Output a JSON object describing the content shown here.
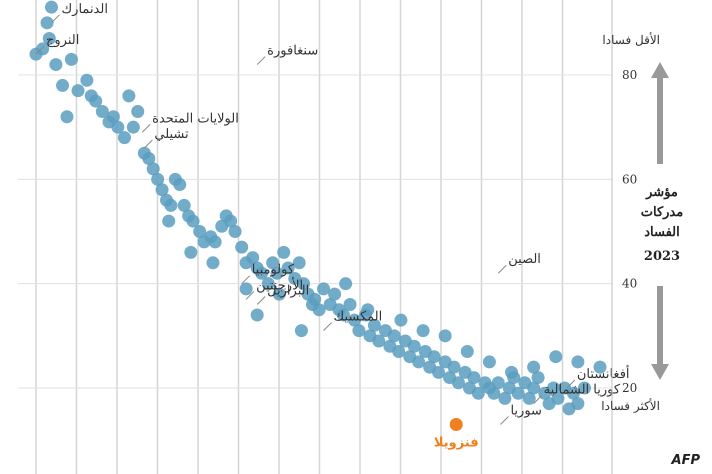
{
  "chart_data": {
    "type": "scatter",
    "yticks": [
      20,
      40,
      60,
      80
    ],
    "ylim": [
      11,
      94
    ],
    "index_title": [
      "مؤشر",
      "مدركات",
      "الفساد",
      "2023"
    ],
    "top_label": "الأقل فسادا",
    "bottom_label": "الأكثر فسادا",
    "highlight_color": "#f07f1e",
    "point_color": "#5b9dc0",
    "source": "AFP",
    "points": [
      [
        0,
        84
      ],
      [
        3,
        85
      ],
      [
        5,
        90
      ],
      [
        6,
        87
      ],
      [
        7,
        93
      ],
      [
        9,
        82
      ],
      [
        12,
        78
      ],
      [
        14,
        72
      ],
      [
        16,
        83
      ],
      [
        19,
        77
      ],
      [
        23,
        79
      ],
      [
        25,
        76
      ],
      [
        27,
        75
      ],
      [
        30,
        73
      ],
      [
        33,
        71
      ],
      [
        35,
        72
      ],
      [
        37,
        70
      ],
      [
        40,
        68
      ],
      [
        42,
        76
      ],
      [
        44,
        70
      ],
      [
        46,
        73
      ],
      [
        49,
        65
      ],
      [
        51,
        64
      ],
      [
        53,
        62
      ],
      [
        55,
        60
      ],
      [
        57,
        58
      ],
      [
        59,
        56
      ],
      [
        61,
        55
      ],
      [
        63,
        60
      ],
      [
        65,
        59
      ],
      [
        67,
        55
      ],
      [
        69,
        53
      ],
      [
        71,
        52
      ],
      [
        74,
        50
      ],
      [
        76,
        48
      ],
      [
        79,
        49
      ],
      [
        81,
        48
      ],
      [
        84,
        51
      ],
      [
        86,
        53
      ],
      [
        88,
        52
      ],
      [
        90,
        50
      ],
      [
        93,
        47
      ],
      [
        95,
        44
      ],
      [
        98,
        45
      ],
      [
        100,
        43
      ],
      [
        102,
        42
      ],
      [
        105,
        40
      ],
      [
        107,
        44
      ],
      [
        109,
        42
      ],
      [
        112,
        46
      ],
      [
        114,
        43
      ],
      [
        117,
        41
      ],
      [
        119,
        44
      ],
      [
        121,
        40
      ],
      [
        123,
        38
      ],
      [
        126,
        37
      ],
      [
        128,
        35
      ],
      [
        130,
        39
      ],
      [
        133,
        36
      ],
      [
        135,
        38
      ],
      [
        137,
        35
      ],
      [
        139,
        34
      ],
      [
        142,
        36
      ],
      [
        144,
        33
      ],
      [
        146,
        31
      ],
      [
        149,
        34
      ],
      [
        151,
        30
      ],
      [
        153,
        32
      ],
      [
        155,
        29
      ],
      [
        158,
        31
      ],
      [
        160,
        28
      ],
      [
        162,
        30
      ],
      [
        164,
        27
      ],
      [
        167,
        29
      ],
      [
        169,
        26
      ],
      [
        171,
        28
      ],
      [
        173,
        25
      ],
      [
        176,
        27
      ],
      [
        178,
        24
      ],
      [
        180,
        26
      ],
      [
        182,
        23
      ],
      [
        185,
        25
      ],
      [
        187,
        22
      ],
      [
        189,
        24
      ],
      [
        191,
        21
      ],
      [
        194,
        23
      ],
      [
        196,
        20
      ],
      [
        198,
        22
      ],
      [
        200,
        19
      ],
      [
        203,
        21
      ],
      [
        205,
        20
      ],
      [
        207,
        19
      ],
      [
        209,
        21
      ],
      [
        212,
        18
      ],
      [
        214,
        20
      ],
      [
        216,
        22
      ],
      [
        218,
        19
      ],
      [
        221,
        21
      ],
      [
        223,
        18
      ],
      [
        225,
        20
      ],
      [
        227,
        22
      ],
      [
        230,
        19
      ],
      [
        232,
        17
      ],
      [
        234,
        20
      ],
      [
        236,
        18
      ],
      [
        239,
        20
      ],
      [
        241,
        16
      ],
      [
        243,
        19
      ],
      [
        245,
        17
      ],
      [
        248,
        20
      ],
      [
        60,
        52
      ],
      [
        70,
        46
      ],
      [
        80,
        44
      ],
      [
        95,
        39
      ],
      [
        110,
        38
      ],
      [
        125,
        36
      ],
      [
        140,
        40
      ],
      [
        150,
        35
      ],
      [
        165,
        33
      ],
      [
        175,
        31
      ],
      [
        185,
        30
      ],
      [
        195,
        27
      ],
      [
        205,
        25
      ],
      [
        215,
        23
      ],
      [
        225,
        24
      ],
      [
        235,
        26
      ],
      [
        245,
        25
      ],
      [
        255,
        24
      ],
      [
        100,
        34
      ],
      [
        120,
        31
      ]
    ],
    "labeled_points": [
      {
        "x": 0,
        "y": 84,
        "label": "النروج"
      },
      {
        "x": 7,
        "y": 90,
        "label": "الدنمارك"
      },
      {
        "x": 48,
        "y": 69,
        "label": "الولايات المتحدة"
      },
      {
        "x": 49,
        "y": 66,
        "label": "تشيلي"
      },
      {
        "x": 100,
        "y": 82,
        "label": "سنغافورة"
      },
      {
        "x": 93,
        "y": 40,
        "label": "كولومبيا"
      },
      {
        "x": 95,
        "y": 37,
        "label": "الأرجنتين"
      },
      {
        "x": 100,
        "y": 36,
        "label": "البرازيل"
      },
      {
        "x": 130,
        "y": 31,
        "label": "المكسيك"
      },
      {
        "x": 209,
        "y": 42,
        "label": "الصين"
      },
      {
        "x": 240,
        "y": 20,
        "label": "أفغانستان"
      },
      {
        "x": 225,
        "y": 17,
        "label": "كوريا الشمالية"
      },
      {
        "x": 210,
        "y": 13,
        "label": "سوريا"
      },
      {
        "x": 190,
        "y": 13,
        "label": "فنزويلا",
        "highlight": true
      }
    ]
  }
}
